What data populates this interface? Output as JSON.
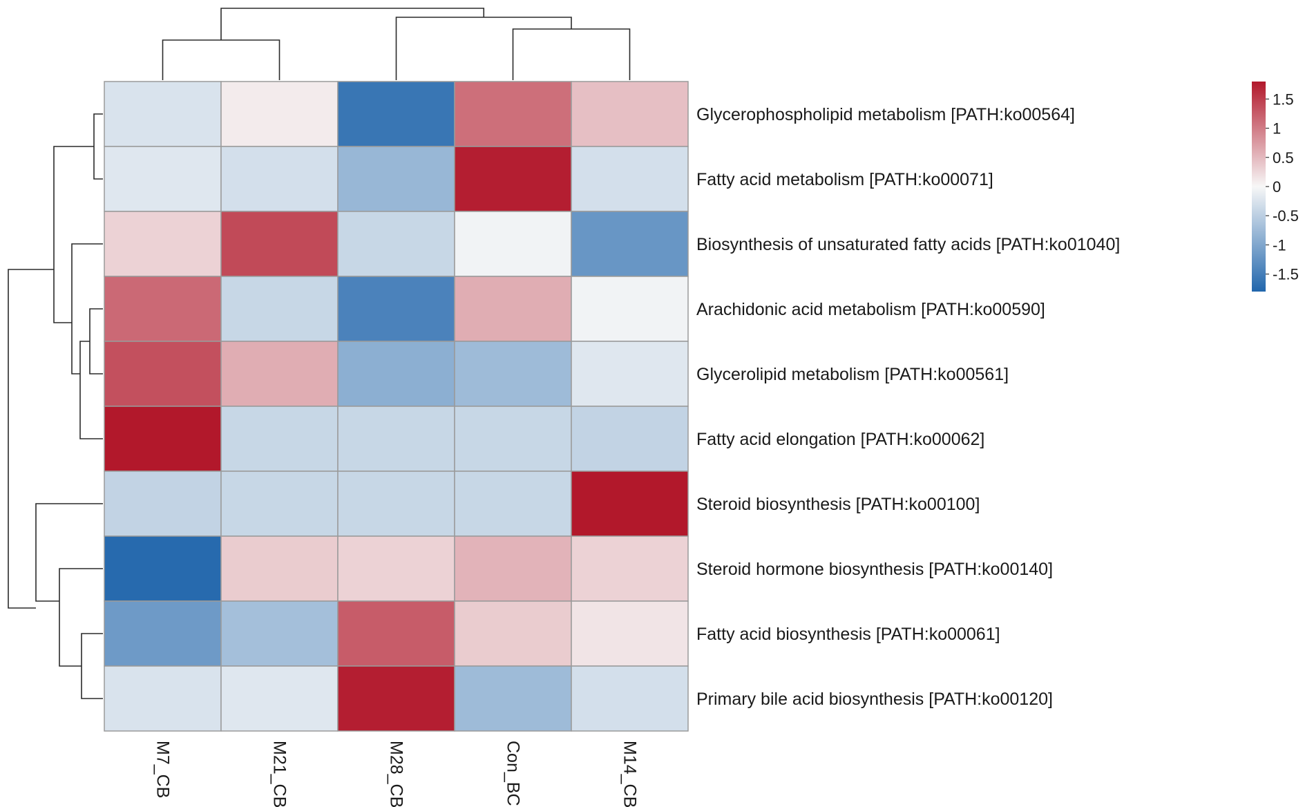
{
  "chart_data": {
    "type": "heatmap",
    "title": "",
    "columns": [
      "M7_CB",
      "M21_CB",
      "M28_CB",
      "Con_BC",
      "M14_CB"
    ],
    "rows": [
      "Glycerophospholipid metabolism [PATH:ko00564]",
      "Fatty acid metabolism [PATH:ko00071]",
      "Biosynthesis of unsaturated fatty acids [PATH:ko01040]",
      "Arachidonic acid metabolism [PATH:ko00590]",
      "Glycerolipid metabolism [PATH:ko00561]",
      "Fatty acid elongation [PATH:ko00062]",
      "Steroid biosynthesis [PATH:ko00100]",
      "Steroid hormone biosynthesis [PATH:ko00140]",
      "Fatty acid biosynthesis [PATH:ko00061]",
      "Primary bile acid biosynthesis [PATH:ko00120]"
    ],
    "values": [
      [
        -0.25,
        0.1,
        -1.6,
        1.1,
        0.45
      ],
      [
        -0.2,
        -0.3,
        -0.8,
        1.75,
        -0.3
      ],
      [
        0.3,
        1.4,
        -0.4,
        -0.05,
        -1.2
      ],
      [
        1.15,
        -0.4,
        -1.45,
        0.6,
        -0.05
      ],
      [
        1.35,
        0.6,
        -0.9,
        -0.75,
        -0.2
      ],
      [
        1.8,
        -0.4,
        -0.4,
        -0.4,
        -0.45
      ],
      [
        -0.45,
        -0.4,
        -0.4,
        -0.4,
        1.8
      ],
      [
        -1.75,
        0.35,
        0.3,
        0.55,
        0.3
      ],
      [
        -1.15,
        -0.7,
        1.25,
        0.35,
        0.15
      ],
      [
        -0.25,
        -0.2,
        1.75,
        -0.75,
        -0.3
      ]
    ],
    "legend": {
      "ticks": [
        "1.5",
        "1",
        "0.5",
        "0",
        "-0.5",
        "-1",
        "-1.5"
      ],
      "tick_values": [
        1.5,
        1,
        0.5,
        0,
        -0.5,
        -1,
        -1.5
      ],
      "range": [
        -1.8,
        1.8
      ],
      "colors": {
        "low": "#2166ac",
        "mid": "#f7f7f7",
        "high": "#b2182b"
      },
      "position": "top-right"
    },
    "row_clustering": "dendrogram-left",
    "column_clustering": "dendrogram-top"
  }
}
